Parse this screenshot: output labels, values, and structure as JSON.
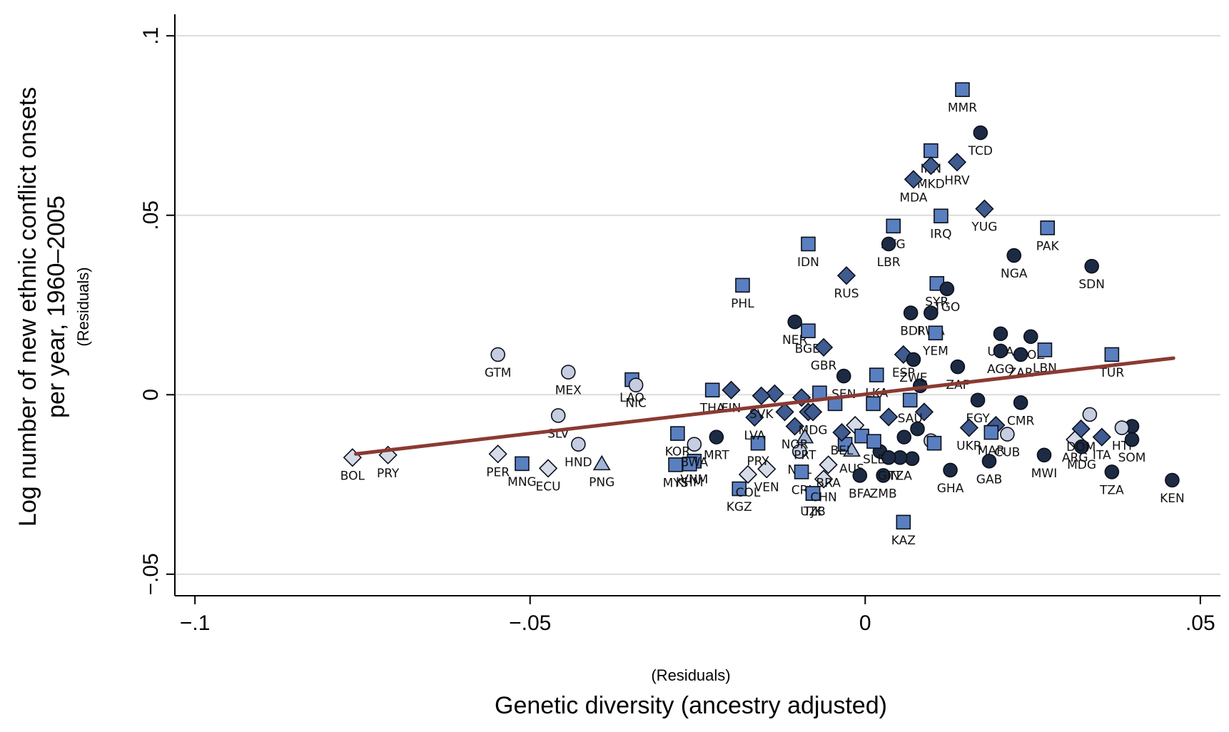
{
  "chart_data": {
    "type": "scatter",
    "title": "",
    "xlabel": "Genetic diversity (ancestry adjusted)",
    "xlabel_sub": "(Residuals)",
    "ylabel_lines": [
      "Log number of new ethnic conflict onsets",
      "per year, 1960–2005"
    ],
    "ylabel_sub": "(Residuals)",
    "xlim": [
      -0.103,
      0.053
    ],
    "ylim": [
      -0.056,
      0.106
    ],
    "x_ticks": [
      {
        "value": -0.1,
        "label": "−.1"
      },
      {
        "value": -0.05,
        "label": "−.05"
      },
      {
        "value": 0,
        "label": "0"
      },
      {
        "value": 0.05,
        "label": ".05"
      }
    ],
    "y_ticks": [
      {
        "value": -0.05,
        "label": "−.05"
      },
      {
        "value": 0,
        "label": "0"
      },
      {
        "value": 0.05,
        "label": ".05"
      },
      {
        "value": 0.1,
        "label": ".1"
      }
    ],
    "grid": "horizontal",
    "fit_line": {
      "x": [
        -0.076,
        0.046
      ],
      "y": [
        -0.0165,
        0.0102
      ],
      "color": "#8b3a32"
    },
    "marker_styles": {
      "circle": {
        "fill": "#1c2a44",
        "label_color": "#111111"
      },
      "square": {
        "fill": "#5a7fc0"
      },
      "diamond": {
        "fill": "#3f5b8f"
      },
      "hollow_diamond": {
        "fill": "#d6dbe8"
      },
      "light_circle": {
        "fill": "#c6cde0"
      },
      "triangle": {
        "fill": "#9fb4d6"
      }
    },
    "points": [
      {
        "label": "BOL",
        "x": -0.0765,
        "y": -0.0175,
        "marker": "hollow_diamond"
      },
      {
        "label": "PRY",
        "x": -0.0712,
        "y": -0.0168,
        "marker": "hollow_diamond"
      },
      {
        "label": "GTM",
        "x": -0.0548,
        "y": 0.0112,
        "marker": "light_circle"
      },
      {
        "label": "PER",
        "x": -0.0548,
        "y": -0.0165,
        "marker": "hollow_diamond"
      },
      {
        "label": "MNG",
        "x": -0.0512,
        "y": -0.0192,
        "marker": "square"
      },
      {
        "label": "ECU",
        "x": -0.0473,
        "y": -0.0205,
        "marker": "hollow_diamond"
      },
      {
        "label": "MEX",
        "x": -0.0443,
        "y": 0.0063,
        "marker": "light_circle"
      },
      {
        "label": "SLV",
        "x": -0.0458,
        "y": -0.0058,
        "marker": "light_circle"
      },
      {
        "label": "HND",
        "x": -0.0428,
        "y": -0.0138,
        "marker": "light_circle"
      },
      {
        "label": "PNG",
        "x": -0.0393,
        "y": -0.0193,
        "marker": "triangle"
      },
      {
        "label": "LAO",
        "x": -0.0348,
        "y": 0.0042,
        "marker": "square"
      },
      {
        "label": "NIC",
        "x": -0.0342,
        "y": 0.0027,
        "marker": "light_circle"
      },
      {
        "label": "KOR",
        "x": -0.028,
        "y": -0.0108,
        "marker": "square"
      },
      {
        "label": "MYS",
        "x": -0.0283,
        "y": -0.0195,
        "marker": "square"
      },
      {
        "label": "VNM",
        "x": -0.0255,
        "y": -0.0185,
        "marker": "square"
      },
      {
        "label": "KHM",
        "x": -0.0262,
        "y": -0.0193,
        "marker": "square"
      },
      {
        "label": "BWA",
        "x": -0.0255,
        "y": -0.0138,
        "marker": "light_circle"
      },
      {
        "label": "THA",
        "x": -0.0228,
        "y": 0.0013,
        "marker": "square"
      },
      {
        "label": "FIN",
        "x": -0.02,
        "y": 0.0013,
        "marker": "diamond"
      },
      {
        "label": "MRT",
        "x": -0.0222,
        "y": -0.0118,
        "marker": "circle"
      },
      {
        "label": "PHL",
        "x": -0.0183,
        "y": 0.0305,
        "marker": "square"
      },
      {
        "label": "KGZ",
        "x": -0.0188,
        "y": -0.0262,
        "marker": "square"
      },
      {
        "label": "COL",
        "x": -0.0175,
        "y": -0.0222,
        "marker": "hollow_diamond"
      },
      {
        "label": "VEN",
        "x": -0.0147,
        "y": -0.0207,
        "marker": "hollow_diamond"
      },
      {
        "label": "PRY",
        "x": -0.016,
        "y": -0.0135,
        "marker": "square"
      },
      {
        "label": "LVA",
        "x": -0.0165,
        "y": -0.0063,
        "marker": "diamond"
      },
      {
        "label": "SVK",
        "x": -0.0155,
        "y": -0.0003,
        "marker": "diamond"
      },
      {
        "label": "IDN",
        "x": -0.0085,
        "y": 0.042,
        "marker": "square"
      },
      {
        "label": "NER",
        "x": -0.0105,
        "y": 0.0203,
        "marker": "circle"
      },
      {
        "label": "BGD",
        "x": -0.0085,
        "y": 0.0178,
        "marker": "square"
      },
      {
        "label": "GBR",
        "x": -0.0062,
        "y": 0.0132,
        "marker": "diamond"
      },
      {
        "label": "SEN",
        "x": -0.0032,
        "y": 0.0052,
        "marker": "circle"
      },
      {
        "label": "NZL",
        "x": -0.0098,
        "y": -0.0158,
        "marker": "light_circle"
      },
      {
        "label": "PRT",
        "x": -0.009,
        "y": -0.0118,
        "marker": "triangle"
      },
      {
        "label": "CRI",
        "x": -0.0095,
        "y": -0.0215,
        "marker": "square"
      },
      {
        "label": "TJK",
        "x": -0.0078,
        "y": -0.0275,
        "marker": "square"
      },
      {
        "label": "UZB",
        "x": -0.0078,
        "y": -0.0275,
        "marker": "square"
      },
      {
        "label": "CHN",
        "x": -0.0062,
        "y": -0.0235,
        "marker": "hollow_diamond"
      },
      {
        "label": "BRA",
        "x": -0.0055,
        "y": -0.0195,
        "marker": "hollow_diamond"
      },
      {
        "label": "NOR",
        "x": -0.0105,
        "y": -0.0088,
        "marker": "diamond"
      },
      {
        "label": "MDG",
        "x": -0.0078,
        "y": -0.0048,
        "marker": "diamond"
      },
      {
        "label": "AUS",
        "x": -0.002,
        "y": -0.0155,
        "marker": "triangle"
      },
      {
        "label": "BEL",
        "x": -0.0035,
        "y": -0.0105,
        "marker": "diamond"
      },
      {
        "label": "RUS",
        "x": -0.0028,
        "y": 0.0332,
        "marker": "diamond"
      },
      {
        "label": "ATG",
        "x": 0.0042,
        "y": 0.047,
        "marker": "square"
      },
      {
        "label": "LBR",
        "x": 0.0035,
        "y": 0.042,
        "marker": "circle"
      },
      {
        "label": "IRN",
        "x": 0.0098,
        "y": 0.068,
        "marker": "square"
      },
      {
        "label": "MKD",
        "x": 0.0098,
        "y": 0.0638,
        "marker": "diamond"
      },
      {
        "label": "MDA",
        "x": 0.0072,
        "y": 0.06,
        "marker": "diamond"
      },
      {
        "label": "HRV",
        "x": 0.0137,
        "y": 0.0648,
        "marker": "diamond"
      },
      {
        "label": "MMR",
        "x": 0.0145,
        "y": 0.085,
        "marker": "square"
      },
      {
        "label": "TCD",
        "x": 0.0172,
        "y": 0.073,
        "marker": "circle"
      },
      {
        "label": "IRQ",
        "x": 0.0113,
        "y": 0.0498,
        "marker": "square"
      },
      {
        "label": "YUG",
        "x": 0.0178,
        "y": 0.0518,
        "marker": "diamond"
      },
      {
        "label": "PAK",
        "x": 0.0272,
        "y": 0.0465,
        "marker": "square"
      },
      {
        "label": "NGA",
        "x": 0.0222,
        "y": 0.0388,
        "marker": "circle"
      },
      {
        "label": "SDN",
        "x": 0.0338,
        "y": 0.0358,
        "marker": "circle"
      },
      {
        "label": "SYR",
        "x": 0.0107,
        "y": 0.031,
        "marker": "square"
      },
      {
        "label": "TGO",
        "x": 0.0122,
        "y": 0.0295,
        "marker": "circle"
      },
      {
        "label": "BDI",
        "x": 0.0068,
        "y": 0.0228,
        "marker": "circle"
      },
      {
        "label": "RWA",
        "x": 0.0098,
        "y": 0.0228,
        "marker": "circle"
      },
      {
        "label": "YEM",
        "x": 0.0105,
        "y": 0.0172,
        "marker": "square"
      },
      {
        "label": "ESP",
        "x": 0.0057,
        "y": 0.0112,
        "marker": "diamond"
      },
      {
        "label": "ZWE",
        "x": 0.0072,
        "y": 0.0098,
        "marker": "circle"
      },
      {
        "label": "ZAF",
        "x": 0.0138,
        "y": 0.0078,
        "marker": "circle"
      },
      {
        "label": "UGA",
        "x": 0.0202,
        "y": 0.017,
        "marker": "circle"
      },
      {
        "label": "AGO",
        "x": 0.0202,
        "y": 0.0122,
        "marker": "circle"
      },
      {
        "label": "MOZ",
        "x": 0.0247,
        "y": 0.0162,
        "marker": "circle"
      },
      {
        "label": "ZAR",
        "x": 0.0232,
        "y": 0.0112,
        "marker": "circle"
      },
      {
        "label": "LBN",
        "x": 0.0268,
        "y": 0.0125,
        "marker": "square"
      },
      {
        "label": "TUR",
        "x": 0.0368,
        "y": 0.0112,
        "marker": "square"
      },
      {
        "label": "LKA",
        "x": 0.0017,
        "y": 0.0055,
        "marker": "square"
      },
      {
        "label": "SAU",
        "x": 0.0067,
        "y": -0.0015,
        "marker": "square"
      },
      {
        "label": "KAZ",
        "x": 0.0057,
        "y": -0.0355,
        "marker": "square"
      },
      {
        "label": "EGY",
        "x": 0.0168,
        "y": -0.0015,
        "marker": "circle"
      },
      {
        "label": "CMR",
        "x": 0.0232,
        "y": -0.0022,
        "marker": "circle"
      },
      {
        "label": "CUB",
        "x": 0.0212,
        "y": -0.011,
        "marker": "light_circle"
      },
      {
        "label": "UKR",
        "x": 0.0155,
        "y": -0.0092,
        "marker": "diamond"
      },
      {
        "label": "MAR",
        "x": 0.0188,
        "y": -0.0105,
        "marker": "square"
      },
      {
        "label": "GAB",
        "x": 0.0185,
        "y": -0.0185,
        "marker": "circle"
      },
      {
        "label": "GHA",
        "x": 0.0127,
        "y": -0.021,
        "marker": "circle"
      },
      {
        "label": "BFA",
        "x": -0.0008,
        "y": -0.0225,
        "marker": "circle"
      },
      {
        "label": "ZMB",
        "x": 0.0027,
        "y": -0.0225,
        "marker": "circle"
      },
      {
        "label": "TZA",
        "x": 0.0052,
        "y": -0.0175,
        "marker": "circle"
      },
      {
        "label": "GIN",
        "x": 0.0035,
        "y": -0.0175,
        "marker": "circle"
      },
      {
        "label": "SLE",
        "x": 0.0013,
        "y": -0.013,
        "marker": "square"
      },
      {
        "label": "MWI",
        "x": 0.0267,
        "y": -0.0168,
        "marker": "circle"
      },
      {
        "label": "ARG",
        "x": 0.0313,
        "y": -0.0125,
        "marker": "hollow_diamond"
      },
      {
        "label": "MDG",
        "x": 0.0323,
        "y": -0.0145,
        "marker": "circle"
      },
      {
        "label": "DOM",
        "x": 0.0322,
        "y": -0.0095,
        "marker": "diamond"
      },
      {
        "label": "ITA",
        "x": 0.0353,
        "y": -0.0118,
        "marker": "diamond"
      },
      {
        "label": "HTI",
        "x": 0.0383,
        "y": -0.0092,
        "marker": "light_circle"
      },
      {
        "label": "SOM",
        "x": 0.0398,
        "y": -0.0125,
        "marker": "circle"
      },
      {
        "label": "TZA",
        "x": 0.0368,
        "y": -0.0215,
        "marker": "circle"
      },
      {
        "label": "KEN",
        "x": 0.0458,
        "y": -0.0238,
        "marker": "circle"
      }
    ],
    "unlabeled_points": [
      {
        "x": -0.0135,
        "y": 0.0003,
        "marker": "diamond"
      },
      {
        "x": -0.012,
        "y": -0.0048,
        "marker": "diamond"
      },
      {
        "x": -0.0095,
        "y": -0.0008,
        "marker": "diamond"
      },
      {
        "x": -0.0085,
        "y": -0.0048,
        "marker": "diamond"
      },
      {
        "x": -0.0068,
        "y": 0.0005,
        "marker": "square"
      },
      {
        "x": -0.0045,
        "y": -0.0025,
        "marker": "square"
      },
      {
        "x": -0.0015,
        "y": -0.0085,
        "marker": "hollow_diamond"
      },
      {
        "x": 0.0012,
        "y": -0.0025,
        "marker": "square"
      },
      {
        "x": 0.0035,
        "y": -0.0062,
        "marker": "diamond"
      },
      {
        "x": 0.0058,
        "y": -0.0118,
        "marker": "circle"
      },
      {
        "x": 0.0078,
        "y": -0.0095,
        "marker": "circle"
      },
      {
        "x": 0.0088,
        "y": -0.0048,
        "marker": "diamond"
      },
      {
        "x": 0.0098,
        "y": -0.0128,
        "marker": "light_circle"
      },
      {
        "x": 0.0103,
        "y": -0.0135,
        "marker": "square"
      },
      {
        "x": 0.0082,
        "y": 0.0025,
        "marker": "circle"
      },
      {
        "x": -0.0005,
        "y": -0.0115,
        "marker": "square"
      },
      {
        "x": -0.003,
        "y": -0.0138,
        "marker": "square"
      },
      {
        "x": 0.0022,
        "y": -0.0158,
        "marker": "circle"
      },
      {
        "x": 0.007,
        "y": -0.0178,
        "marker": "circle"
      },
      {
        "x": 0.0195,
        "y": -0.0085,
        "marker": "diamond"
      },
      {
        "x": 0.0398,
        "y": -0.0088,
        "marker": "circle"
      },
      {
        "x": 0.0335,
        "y": -0.0055,
        "marker": "light_circle"
      }
    ]
  }
}
